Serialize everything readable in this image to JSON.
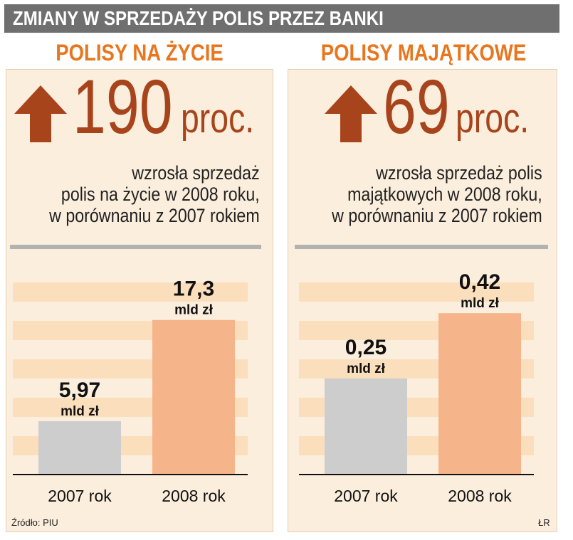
{
  "header": {
    "title": "ZMIANY W SPRZEDAŻY POLIS PRZEZ BANKI"
  },
  "colors": {
    "bar_2007": "#cdcdcd",
    "bar_2008": "#f6b48b",
    "accent": "#e8761e",
    "big_text": "#a7441c",
    "stripe": "#fbdfbd"
  },
  "panels": [
    {
      "title": "POLISY NA ŻYCIE",
      "change_value": "190",
      "change_unit": "proc.",
      "description": [
        "wzrosła sprzedaż",
        "polis na życie w 2008 roku,",
        "w porównaniu z 2007 rokiem"
      ]
    },
    {
      "title": "POLISY MAJĄTKOWE",
      "change_value": "69",
      "change_unit": "proc.",
      "description": [
        "wzrosła sprzedaż polis",
        "majątkowych w 2008 roku,",
        "w porównaniu z 2007 rokiem"
      ]
    }
  ],
  "chart_data": [
    {
      "type": "bar",
      "title": "POLISY NA ŻYCIE",
      "categories": [
        "2007 rok",
        "2008 rok"
      ],
      "values": [
        5.97,
        17.3
      ],
      "value_labels": [
        "5,97",
        "17,3"
      ],
      "unit": "mld zł",
      "ylim": [
        0,
        21.5
      ],
      "grid": "horizontal bands"
    },
    {
      "type": "bar",
      "title": "POLISY MAJĄTKOWE",
      "categories": [
        "2007 rok",
        "2008 rok"
      ],
      "values": [
        0.25,
        0.42
      ],
      "value_labels": [
        "0,25",
        "0,42"
      ],
      "unit": "mld zł",
      "ylim": [
        0,
        0.5
      ],
      "grid": "horizontal bands"
    }
  ],
  "footer": {
    "source": "Źródło: PIU",
    "author": "ŁR"
  }
}
